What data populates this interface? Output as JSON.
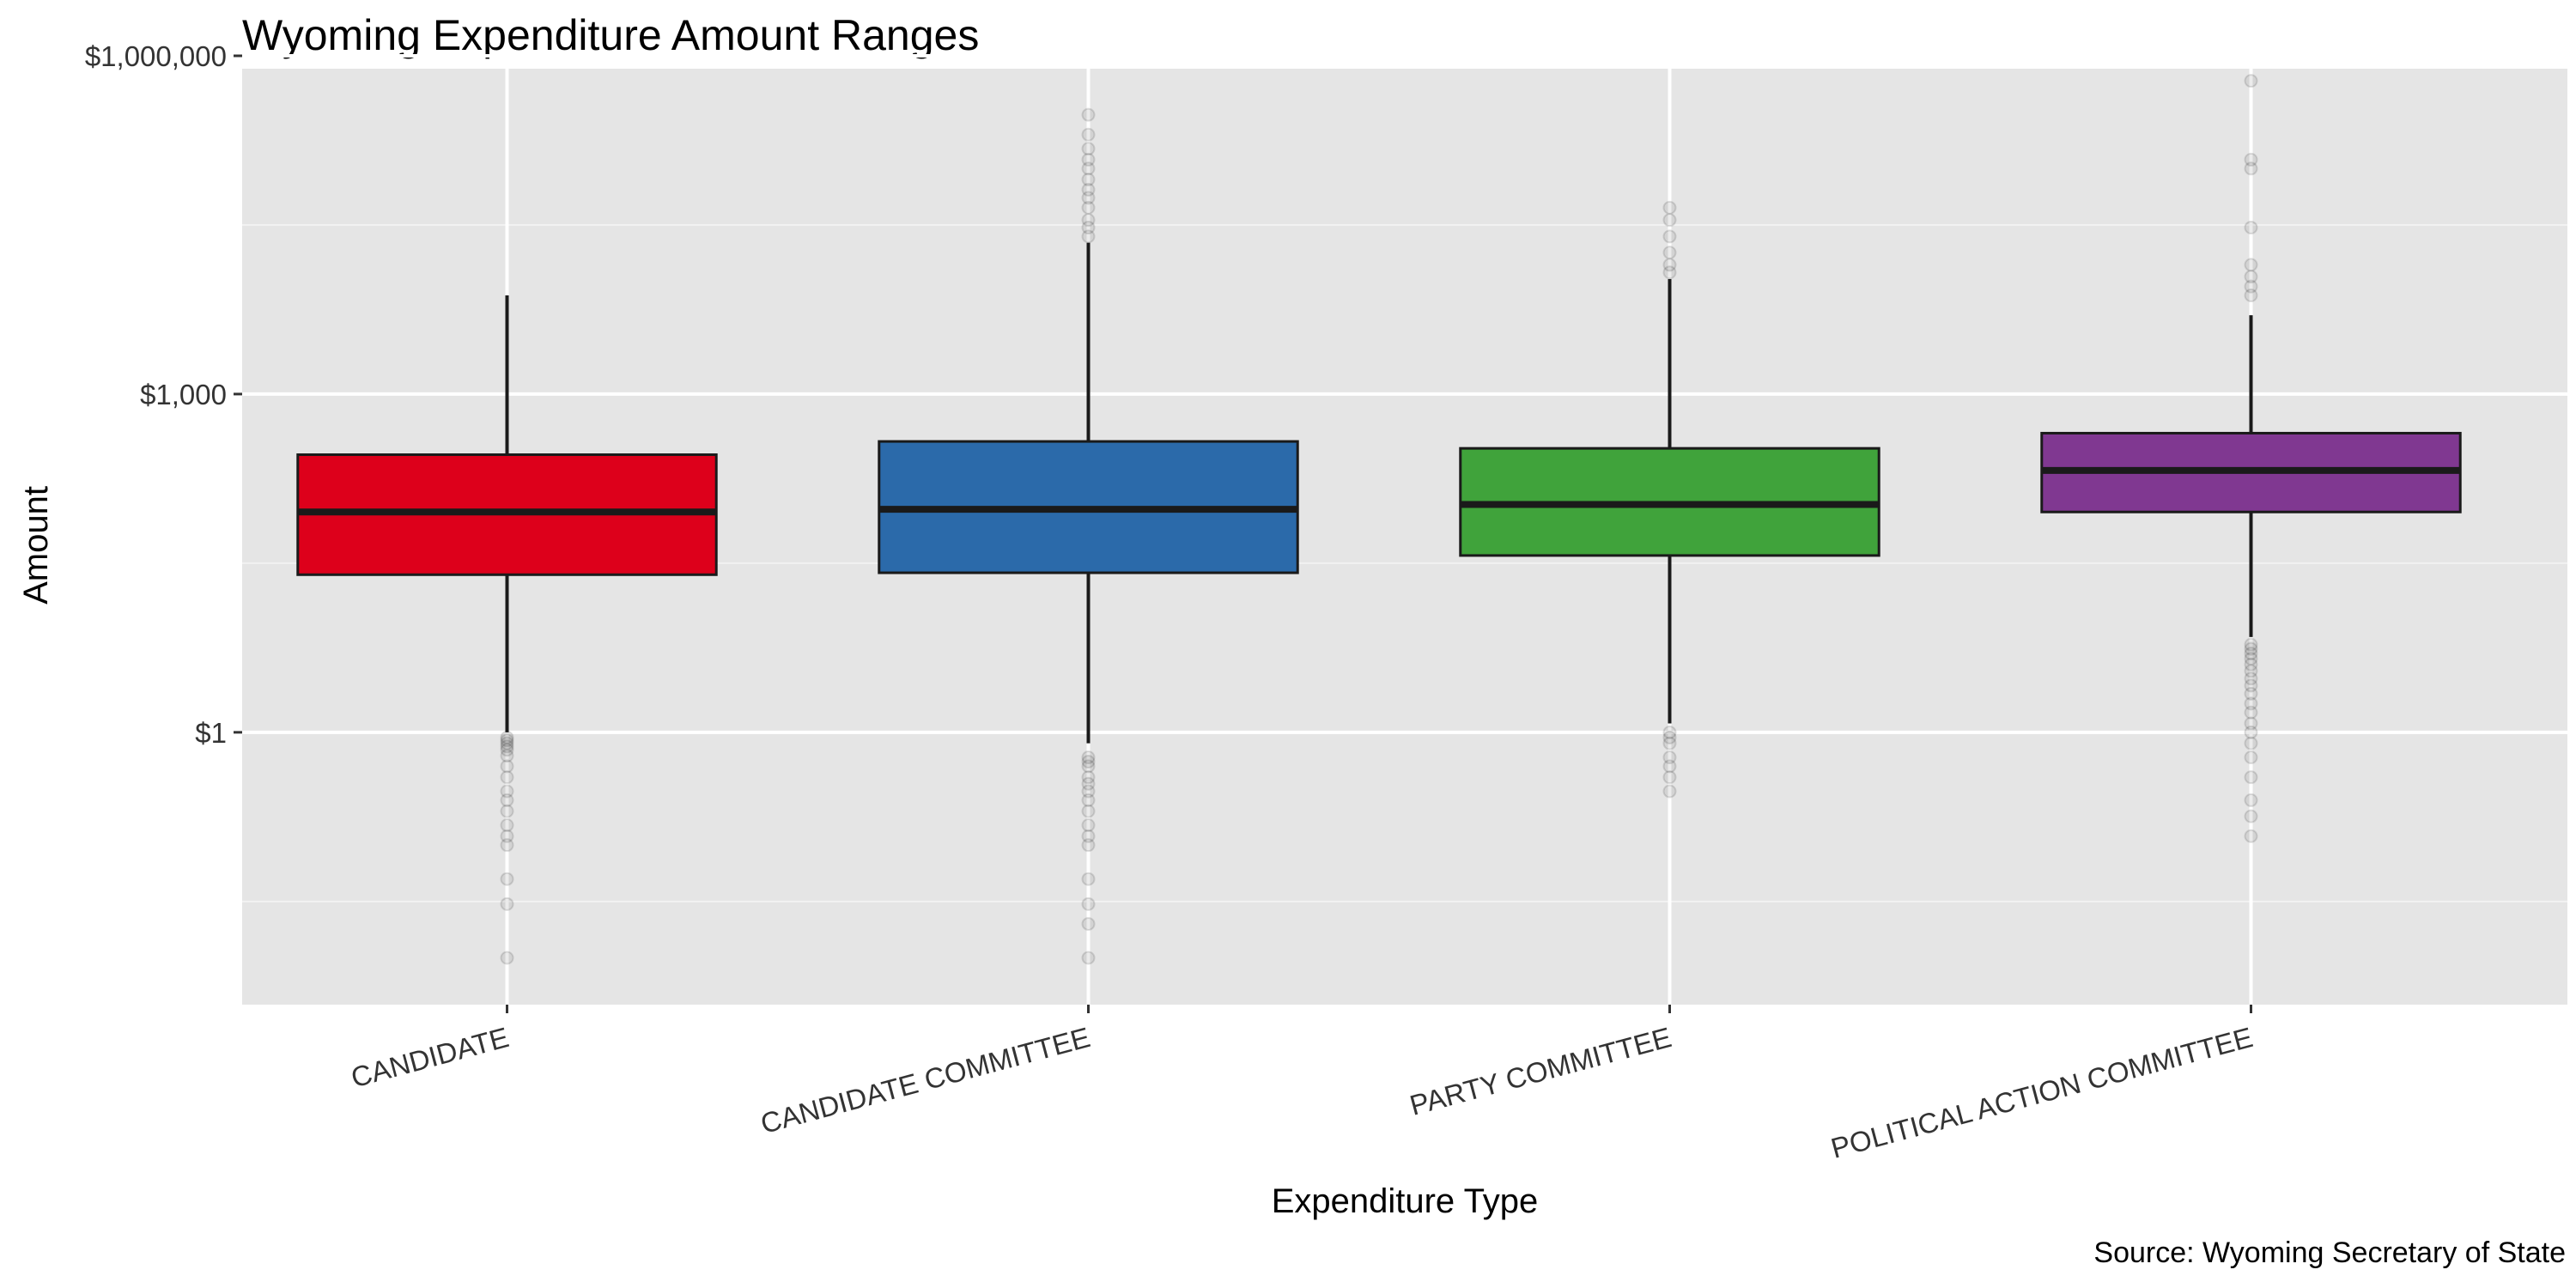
{
  "chart_data": {
    "type": "boxplot",
    "title": "Wyoming Expenditure Amount Ranges",
    "xlabel": "Expenditure Type",
    "ylabel": "Amount",
    "caption": "Source: Wyoming Secretary of State",
    "y_scale": "log10",
    "ylim": [
      0.005,
      1000000
    ],
    "y_ticks": [
      {
        "value": 1,
        "label": "$1"
      },
      {
        "value": 1000,
        "label": "$1,000"
      },
      {
        "value": 1000000,
        "label": "$1,000,000"
      }
    ],
    "grid": true,
    "legend": "none",
    "categories": [
      "CANDIDATE",
      "CANDIDATE COMMITTEE",
      "PARTY COMMITTEE",
      "POLITICAL ACTION COMMITTEE"
    ],
    "series": [
      {
        "category": "CANDIDATE",
        "color": "#DD001B",
        "whisker_low": 1.0,
        "q1": 25,
        "median": 90,
        "q3": 290,
        "whisker_high": 7500,
        "outliers": [
          0.9,
          0.85,
          0.8,
          0.75,
          0.7,
          0.62,
          0.5,
          0.4,
          0.3,
          0.25,
          0.2,
          0.15,
          0.12,
          0.1,
          0.05,
          0.03,
          0.01
        ]
      },
      {
        "category": "CANDIDATE COMMITTEE",
        "color": "#2B6AAA",
        "whisker_low": 0.8,
        "q1": 26,
        "median": 95,
        "q3": 380,
        "whisker_high": 22000,
        "outliers": [
          0.6,
          0.55,
          0.5,
          0.4,
          0.35,
          0.3,
          0.25,
          0.2,
          0.15,
          0.12,
          0.1,
          0.05,
          0.03,
          0.02,
          0.01,
          25000,
          30000,
          35000,
          45000,
          55000,
          65000,
          80000,
          100000,
          120000,
          150000,
          200000,
          300000
        ]
      },
      {
        "category": "PARTY COMMITTEE",
        "color": "#40A33B",
        "whisker_low": 1.2,
        "q1": 37,
        "median": 105,
        "q3": 330,
        "whisker_high": 10500,
        "outliers": [
          1.0,
          0.9,
          0.8,
          0.6,
          0.5,
          0.4,
          0.3,
          12000,
          14000,
          18000,
          25000,
          35000,
          45000
        ]
      },
      {
        "category": "POLITICAL ACTION COMMITTEE",
        "color": "#803891",
        "whisker_low": 7.0,
        "q1": 90,
        "median": 210,
        "q3": 450,
        "whisker_high": 5000,
        "outliers": [
          6.0,
          5.5,
          5.0,
          4.5,
          4.0,
          3.5,
          3.0,
          2.6,
          2.2,
          1.8,
          1.5,
          1.2,
          1.0,
          0.8,
          0.6,
          0.4,
          0.25,
          0.18,
          0.12,
          7500,
          9000,
          11000,
          14000,
          30000,
          100000,
          120000,
          600000
        ]
      }
    ]
  }
}
